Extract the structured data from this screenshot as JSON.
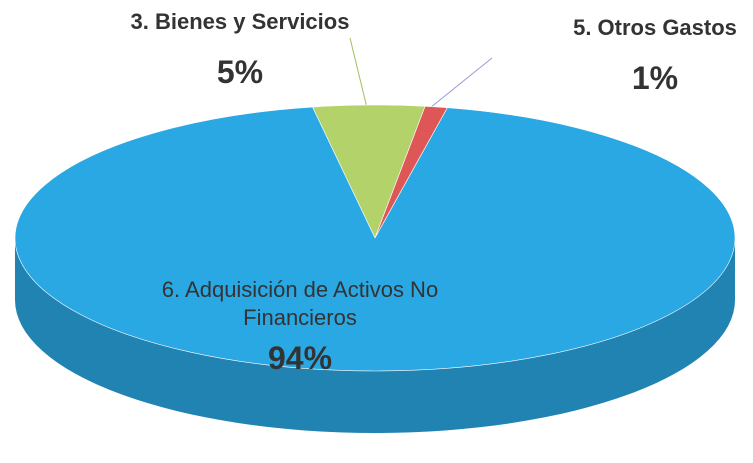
{
  "chart_data": {
    "type": "pie",
    "categories": [
      "3. Bienes y Servicios",
      "5. Otros Gastos",
      "6. Adquisición de Activos No Financieros"
    ],
    "values": [
      5,
      1,
      94
    ],
    "value_labels": [
      "5%",
      "1%",
      "94%"
    ],
    "colors": [
      "#b3d36a",
      "#de5656",
      "#2aa8e4"
    ]
  }
}
